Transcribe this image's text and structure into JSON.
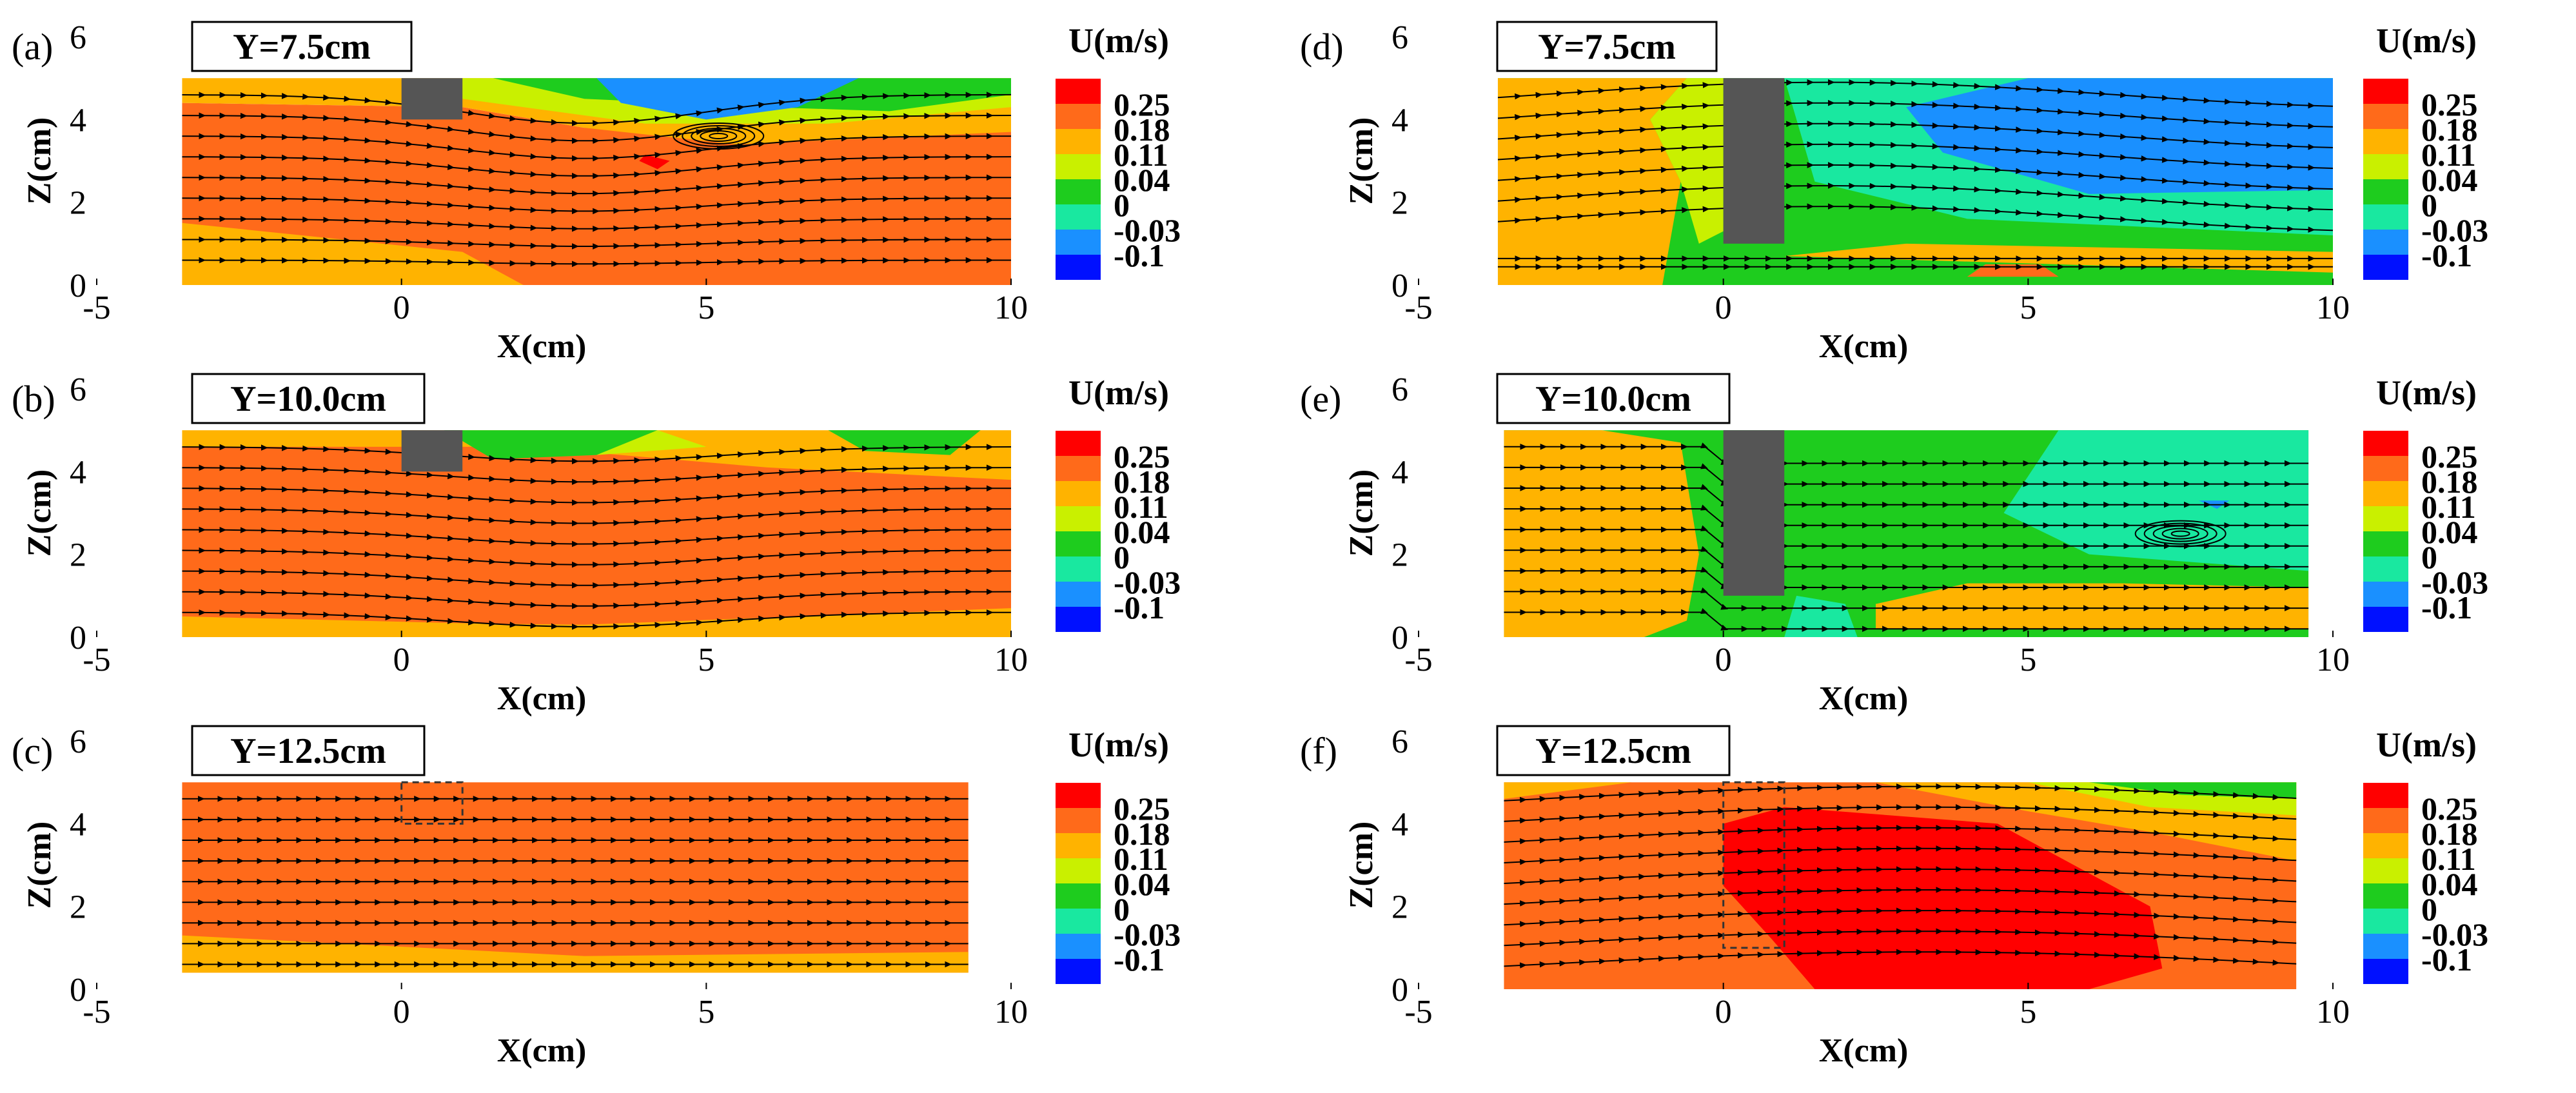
{
  "figure": {
    "description_free": true
  },
  "shared": {
    "x_ticks": [
      "-5",
      "0",
      "5",
      "10"
    ],
    "z_ticks": [
      "0",
      "2",
      "4",
      "6"
    ],
    "xlabel": "X(cm)",
    "ylabel": "Z(cm)",
    "colorbar": {
      "title": "U(m/s)",
      "labels": [
        "0.25",
        "0.18",
        "0.11",
        "0.04",
        "0",
        "-0.03",
        "-0.1"
      ],
      "colors": [
        "#ff0000",
        "#ff6a1a",
        "#ffb300",
        "#c9f000",
        "#1ecc1e",
        "#19e8a0",
        "#1a90ff",
        "#0010ff"
      ]
    }
  },
  "chart_data": [
    {
      "type": "heatmap",
      "panel": "(a)",
      "title": "Y=7.5cm",
      "xlabel": "X(cm)",
      "ylabel": "Z(cm)",
      "xlim": [
        -5,
        10
      ],
      "ylim": [
        0,
        6
      ],
      "obstacle": {
        "x": [
          0,
          1
        ],
        "z": [
          4,
          5
        ],
        "style": "solid"
      },
      "field_range": [
        -0.1,
        0.25
      ],
      "vortex_center": [
        5.2,
        3.6
      ]
    },
    {
      "type": "heatmap",
      "panel": "(b)",
      "title": "Y=10.0cm",
      "xlabel": "X(cm)",
      "ylabel": "Z(cm)",
      "xlim": [
        -5,
        10
      ],
      "ylim": [
        0,
        6
      ],
      "obstacle": {
        "x": [
          0,
          1
        ],
        "z": [
          4,
          5
        ],
        "style": "solid"
      },
      "field_range": [
        -0.1,
        0.25
      ]
    },
    {
      "type": "heatmap",
      "panel": "(c)",
      "title": "Y=12.5cm",
      "xlabel": "X(cm)",
      "ylabel": "Z(cm)",
      "xlim": [
        -5,
        10
      ],
      "ylim": [
        0,
        6
      ],
      "obstacle": {
        "x": [
          0,
          1
        ],
        "z": [
          4,
          5
        ],
        "style": "dashed"
      },
      "field_range": [
        -0.1,
        0.25
      ]
    },
    {
      "type": "heatmap",
      "panel": "(d)",
      "title": "Y=7.5cm",
      "xlabel": "X(cm)",
      "ylabel": "Z(cm)",
      "xlim": [
        -5,
        10
      ],
      "ylim": [
        0,
        6
      ],
      "obstacle": {
        "x": [
          0,
          1
        ],
        "z": [
          1,
          5
        ],
        "style": "solid"
      },
      "field_range": [
        -0.1,
        0.25
      ]
    },
    {
      "type": "heatmap",
      "panel": "(e)",
      "title": "Y=10.0cm",
      "xlabel": "X(cm)",
      "ylabel": "Z(cm)",
      "xlim": [
        -5,
        10
      ],
      "ylim": [
        0,
        6
      ],
      "obstacle": {
        "x": [
          0,
          1
        ],
        "z": [
          1,
          5
        ],
        "style": "solid"
      },
      "field_range": [
        -0.1,
        0.25
      ],
      "vortex_center": [
        7.5,
        2.5
      ]
    },
    {
      "type": "heatmap",
      "panel": "(f)",
      "title": "Y=12.5cm",
      "xlabel": "X(cm)",
      "ylabel": "Z(cm)",
      "xlim": [
        -5,
        10
      ],
      "ylim": [
        0,
        6
      ],
      "obstacle": {
        "x": [
          0,
          1
        ],
        "z": [
          1,
          5
        ],
        "style": "dashed"
      },
      "field_range": [
        -0.1,
        0.25
      ]
    }
  ]
}
